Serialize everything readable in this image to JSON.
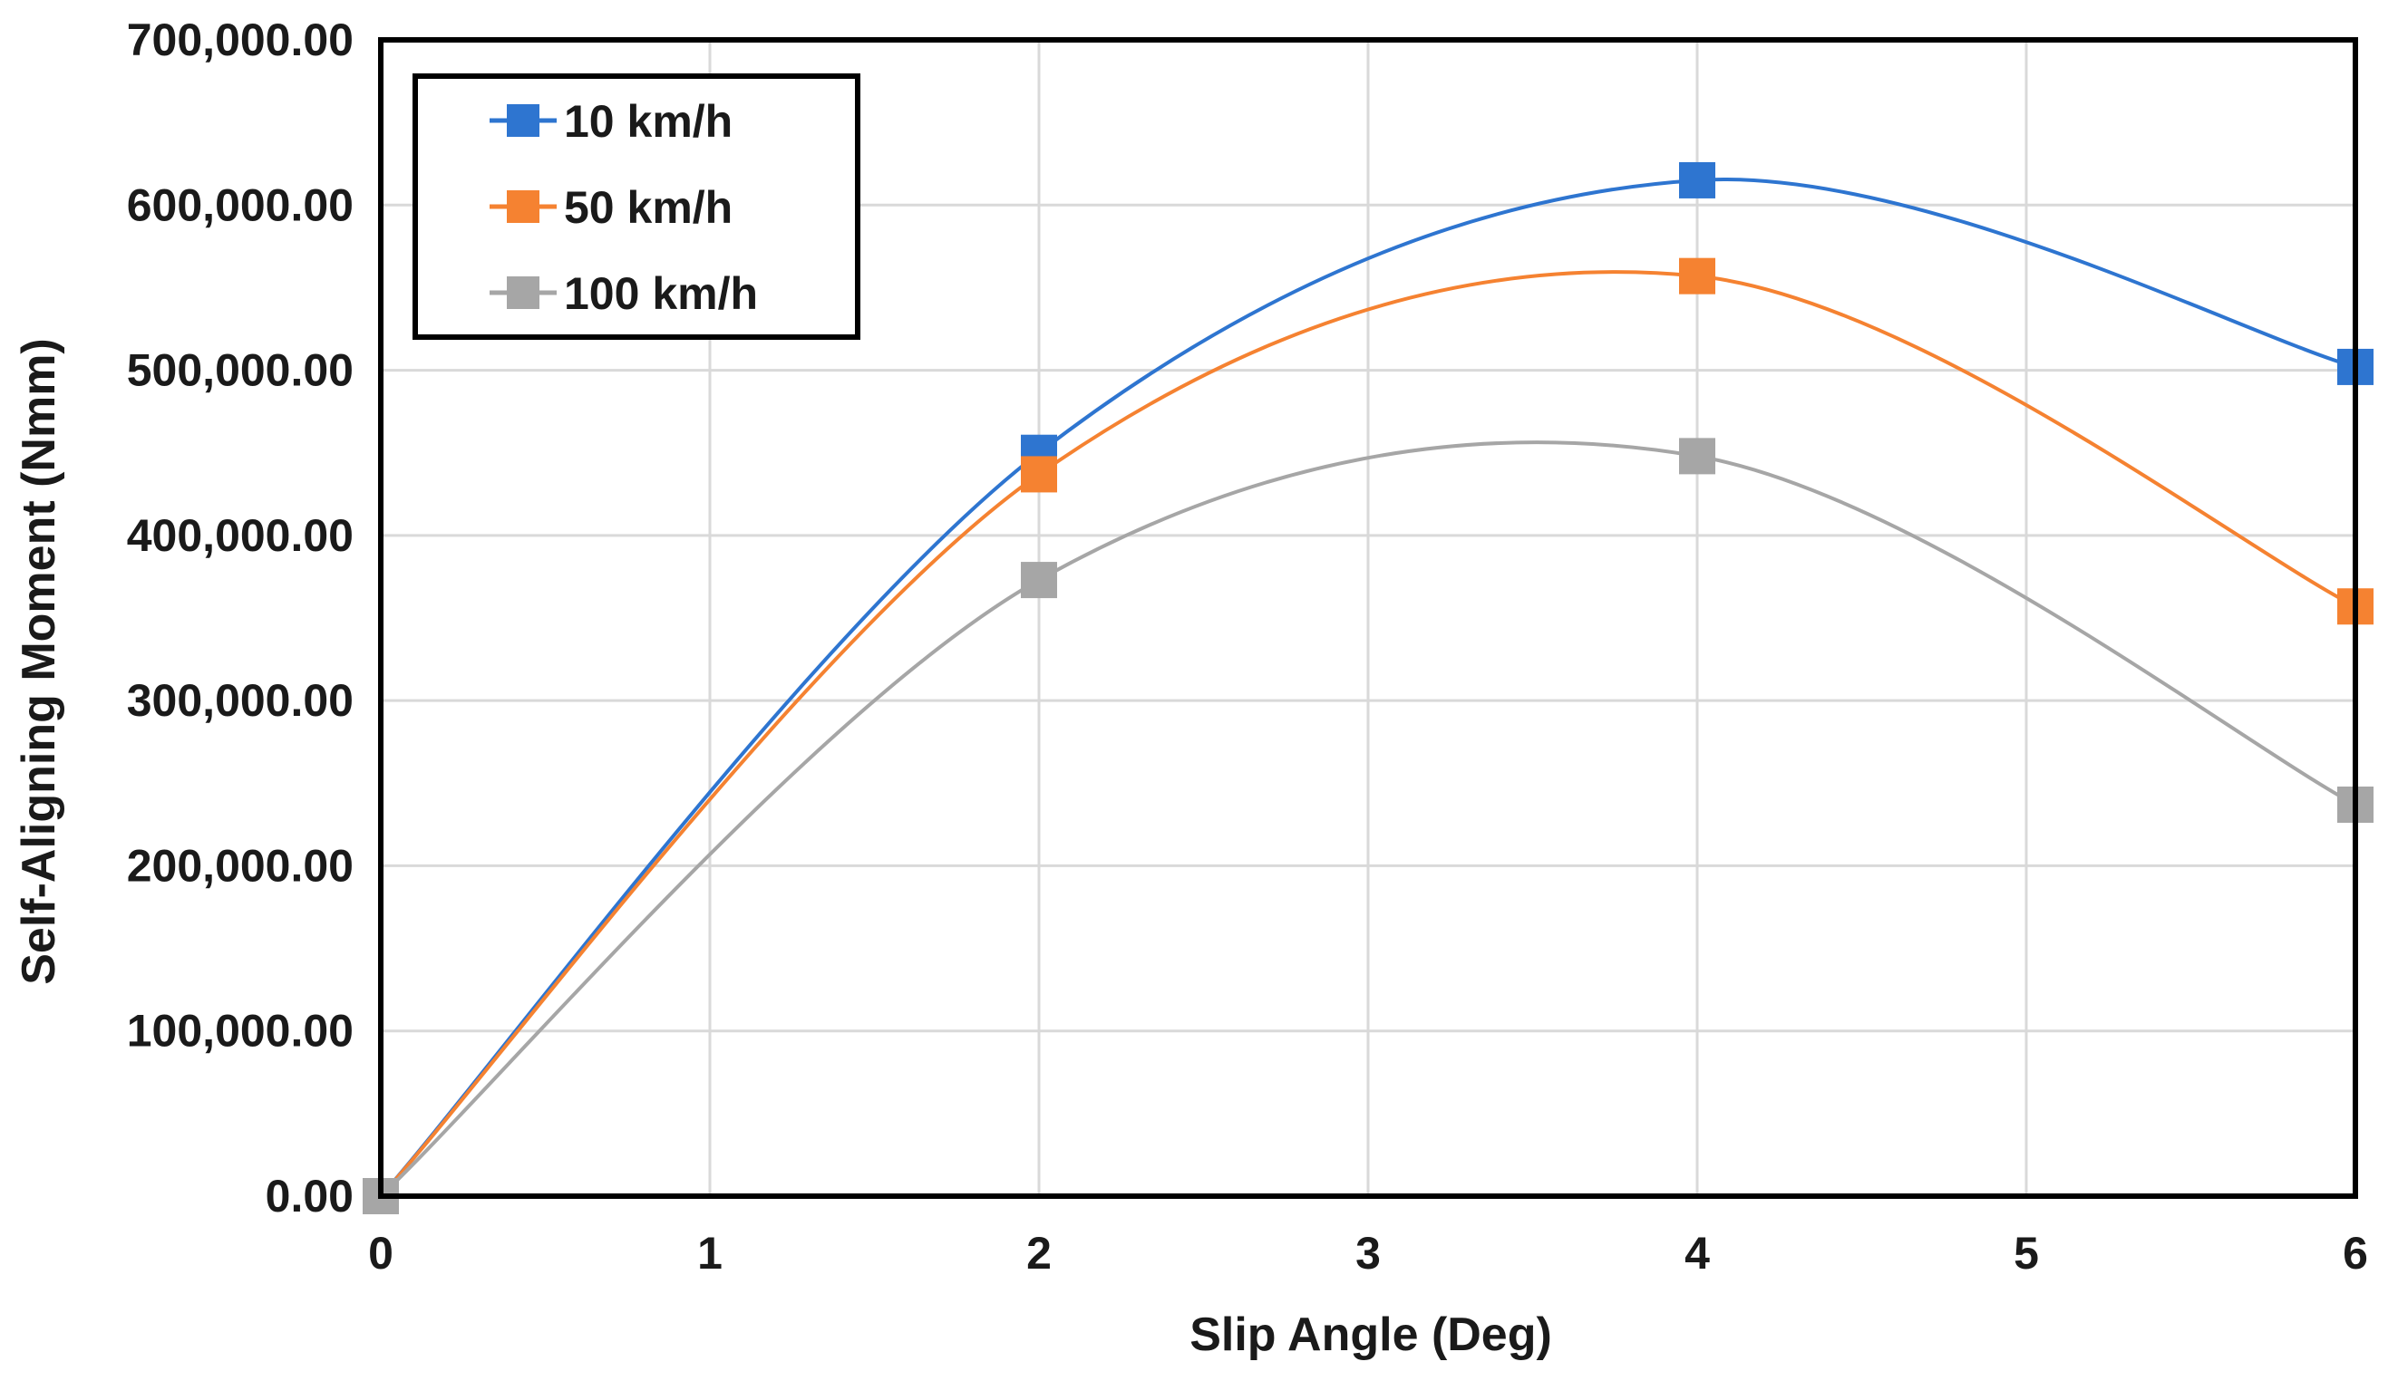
{
  "chart_data": {
    "type": "line",
    "title": "",
    "xlabel": "Slip Angle (Deg)",
    "ylabel": "Self-Aligning Moment (Nmm)",
    "x": [
      0,
      2,
      4,
      6
    ],
    "xlim": [
      0,
      6
    ],
    "ylim": [
      0,
      700000
    ],
    "x_ticks": [
      "0",
      "1",
      "2",
      "3",
      "4",
      "5",
      "6"
    ],
    "y_ticks": [
      "0.00",
      "100,000.00",
      "200,000.00",
      "300,000.00",
      "400,000.00",
      "500,000.00",
      "600,000.00",
      "700,000.00"
    ],
    "grid": true,
    "legend_position": "top-left",
    "series": [
      {
        "name": "10 km/h",
        "color": "#2E75D0",
        "values": [
          0,
          450000,
          615000,
          502000
        ]
      },
      {
        "name": "50 km/h",
        "color": "#F58231",
        "values": [
          0,
          437000,
          557000,
          357000
        ]
      },
      {
        "name": "100 km/h",
        "color": "#A6A6A6",
        "values": [
          0,
          373000,
          448000,
          237000
        ]
      }
    ]
  }
}
